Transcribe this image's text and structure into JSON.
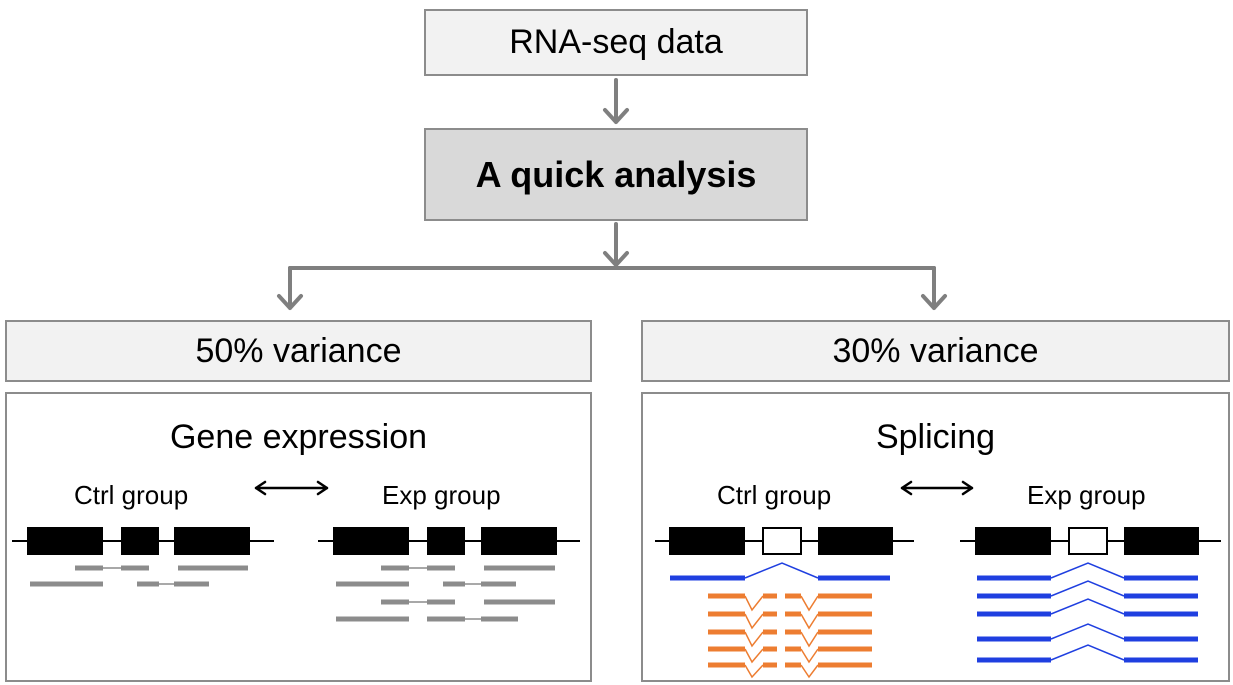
{
  "flow": {
    "top_label": "RNA-seq data",
    "mid_label": "A quick analysis",
    "left_variance": "50% variance",
    "right_variance": "30% variance"
  },
  "left_panel": {
    "title": "Gene expression",
    "ctrl_label": "Ctrl group",
    "exp_label": "Exp group"
  },
  "right_panel": {
    "title": "Splicing",
    "ctrl_label": "Ctrl group",
    "exp_label": "Exp group"
  },
  "colors": {
    "box_border": "#8c8c8c",
    "box_fill_light": "#f2f2f2",
    "box_fill_dark": "#d9d9d9",
    "arrow": "#7f7f7f",
    "read_gray": "#8c8c8c",
    "read_orange": "#ed7d31",
    "read_blue": "#1f3fe0",
    "exon": "#000000"
  }
}
